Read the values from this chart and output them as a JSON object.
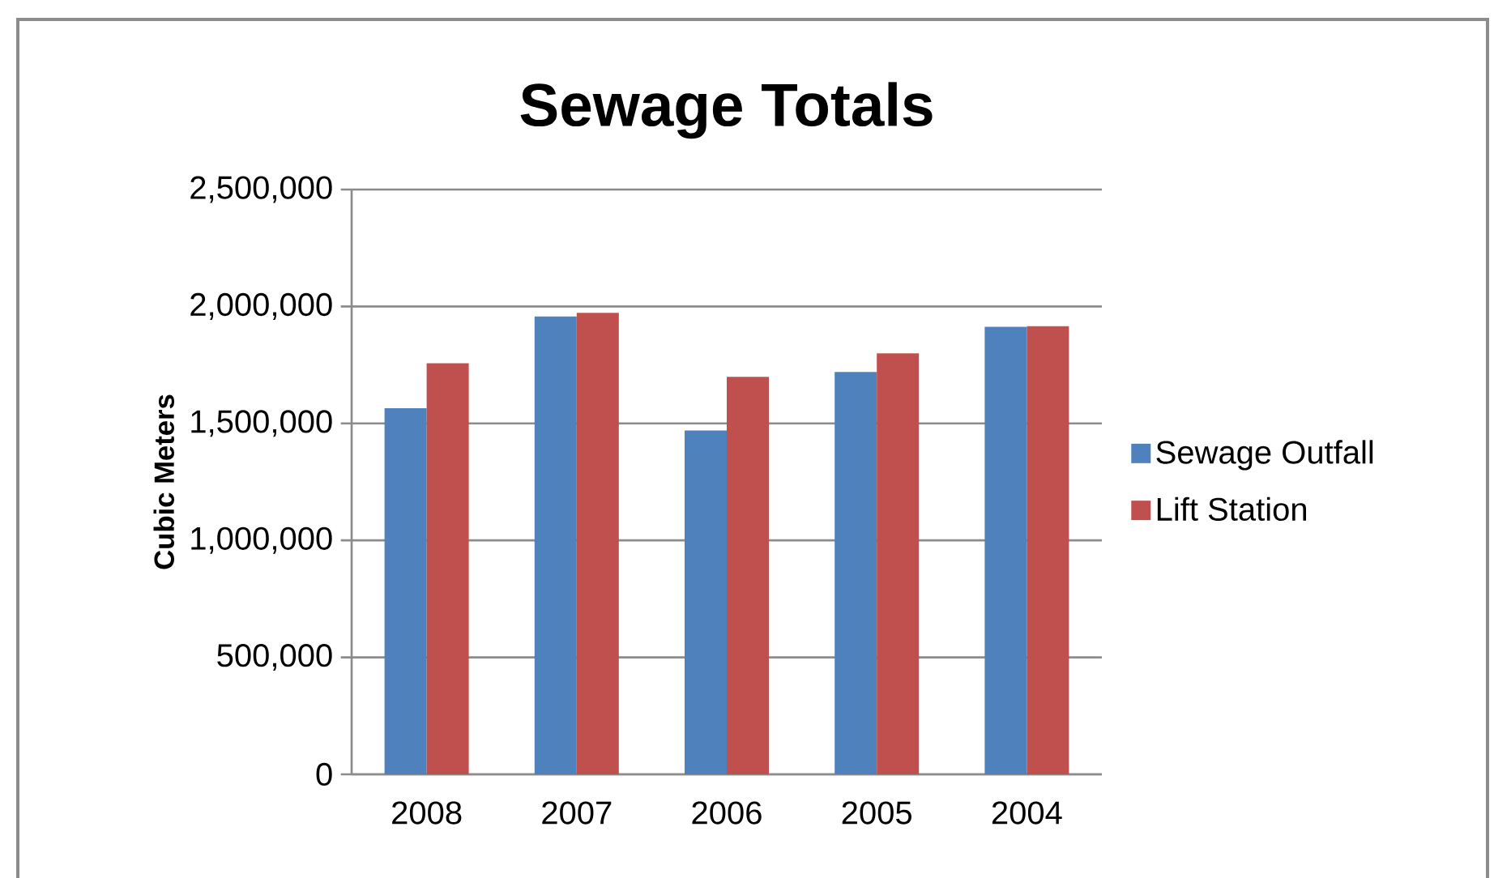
{
  "chart_data": {
    "type": "bar",
    "title": "Sewage Totals",
    "ylabel": "Cubic Meters",
    "categories": [
      "2008",
      "2007",
      "2006",
      "2005",
      "2004"
    ],
    "series": [
      {
        "name": "Sewage Outfall",
        "color": "#4f81bd",
        "values": [
          1565000,
          1957000,
          1470000,
          1720000,
          1913000
        ]
      },
      {
        "name": "Lift Station",
        "color": "#c0504d",
        "values": [
          1757000,
          1973000,
          1699000,
          1800000,
          1916000
        ]
      }
    ],
    "ylim": [
      0,
      2500000
    ],
    "yticks": [
      0,
      {
        "value": 500000,
        "label": "500,000"
      },
      {
        "value": 1000000,
        "label": "1,000,000"
      },
      {
        "value": 1500000,
        "label": "1,500,000"
      },
      {
        "value": 2000000,
        "label": "2,000,000"
      },
      {
        "value": 2500000,
        "label": "2,500,000"
      }
    ],
    "grid": "y",
    "legend": "right"
  }
}
